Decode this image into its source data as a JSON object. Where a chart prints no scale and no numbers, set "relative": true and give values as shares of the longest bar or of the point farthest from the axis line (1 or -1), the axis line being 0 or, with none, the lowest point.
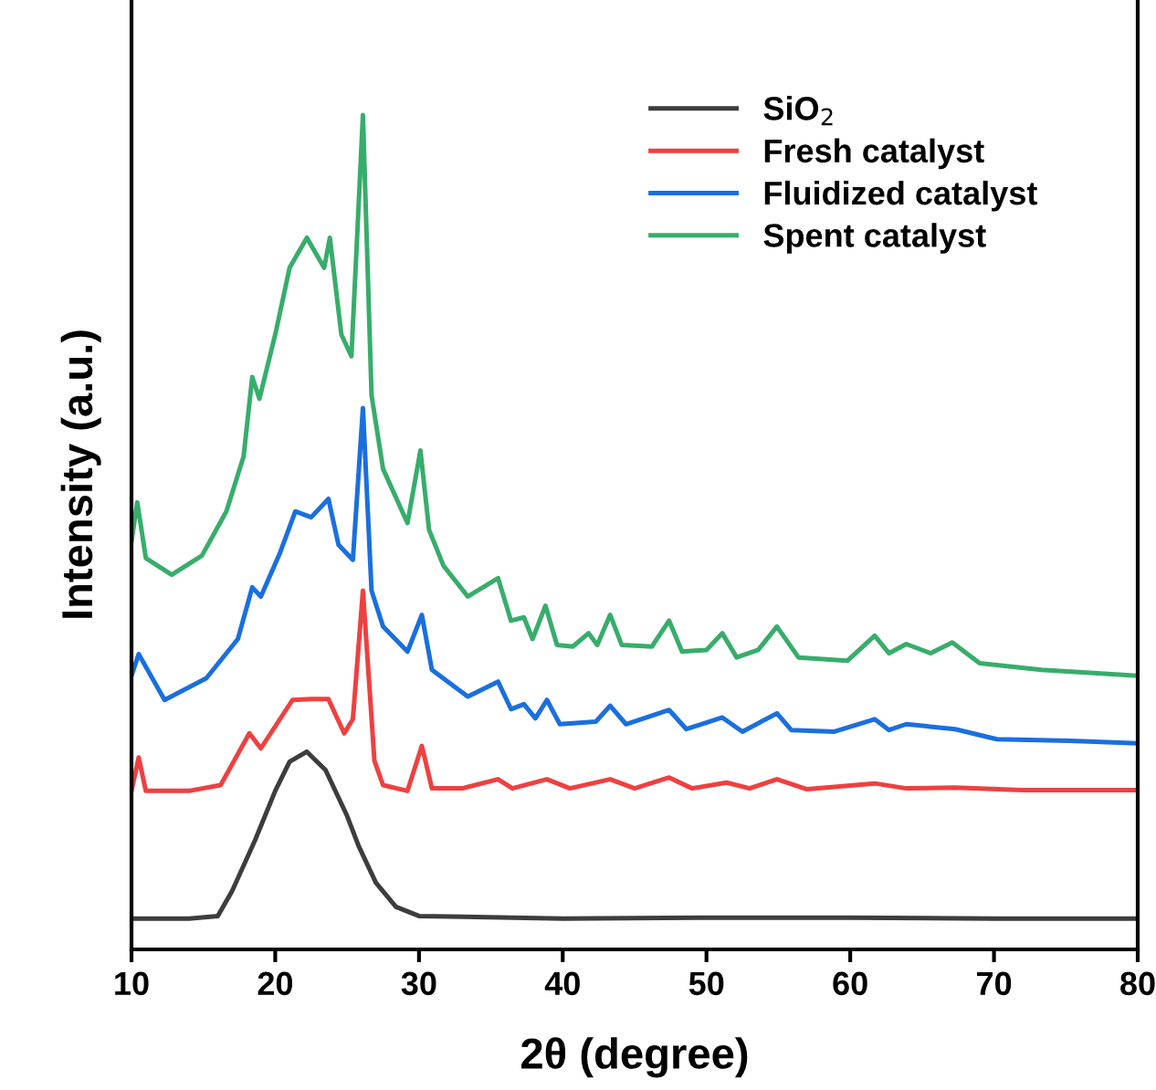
{
  "chart_data": {
    "type": "line",
    "xlabel": "2θ (degree)",
    "ylabel": "Intensity (a.u.)",
    "relative": true,
    "xlim": [
      10,
      80
    ],
    "xticks": [
      10,
      20,
      30,
      40,
      50,
      60,
      70,
      80
    ],
    "legend": "top right",
    "grid": false,
    "marker": "none",
    "line_style": "solid",
    "series": [
      {
        "name": "SiO$_{2}$",
        "color": "#3d3d3d",
        "x": [
          10,
          14,
          16,
          17,
          18.6,
          20,
          21,
          22.2,
          23.5,
          25,
          25.8,
          27,
          28.4,
          30,
          40,
          50,
          60,
          70,
          80
        ],
        "values": [
          0.037,
          0.037,
          0.04,
          0.07,
          0.131,
          0.19,
          0.225,
          0.237,
          0.215,
          0.16,
          0.124,
          0.08,
          0.051,
          0.04,
          0.037,
          0.038,
          0.038,
          0.037,
          0.037
        ]
      },
      {
        "name": "Fresh catalyst",
        "color": "#ef4040",
        "x": [
          10,
          10.5,
          11,
          14,
          16.2,
          18.2,
          19,
          21.2,
          22.5,
          23.7,
          24.8,
          25.4,
          26.1,
          26.9,
          27.5,
          29.2,
          30.2,
          30.9,
          33,
          35.5,
          36.5,
          38.9,
          40.5,
          43.3,
          45,
          47.4,
          49,
          51.4,
          53,
          54.9,
          57,
          61.7,
          63.9,
          67.3,
          72,
          80
        ],
        "values": [
          0.19,
          0.23,
          0.19,
          0.19,
          0.197,
          0.259,
          0.241,
          0.299,
          0.3,
          0.3,
          0.259,
          0.276,
          0.43,
          0.226,
          0.197,
          0.19,
          0.244,
          0.193,
          0.193,
          0.204,
          0.193,
          0.204,
          0.193,
          0.204,
          0.193,
          0.206,
          0.193,
          0.2,
          0.193,
          0.204,
          0.192,
          0.199,
          0.193,
          0.194,
          0.191,
          0.191
        ]
      },
      {
        "name": "Fluidized catalyst",
        "color": "#1a6fdf",
        "x": [
          10,
          10.5,
          12.3,
          15.2,
          17.4,
          18.4,
          19,
          20.3,
          21.4,
          22.5,
          23.7,
          24.4,
          25.4,
          26.1,
          26.7,
          27.5,
          29.2,
          30.2,
          30.9,
          33.4,
          35.5,
          36.4,
          37.3,
          38.1,
          38.9,
          39.8,
          42.3,
          43.3,
          44.4,
          47.4,
          48.6,
          51.1,
          52.5,
          54.9,
          55.9,
          58.9,
          61.7,
          62.7,
          63.9,
          67.3,
          70.2,
          75.3,
          80
        ],
        "values": [
          0.328,
          0.354,
          0.299,
          0.325,
          0.372,
          0.434,
          0.423,
          0.474,
          0.525,
          0.518,
          0.54,
          0.485,
          0.467,
          0.649,
          0.43,
          0.387,
          0.357,
          0.401,
          0.335,
          0.303,
          0.321,
          0.288,
          0.294,
          0.277,
          0.299,
          0.27,
          0.273,
          0.292,
          0.27,
          0.287,
          0.264,
          0.278,
          0.261,
          0.283,
          0.263,
          0.261,
          0.276,
          0.263,
          0.27,
          0.264,
          0.252,
          0.25,
          0.247
        ]
      },
      {
        "name": "Spent catalyst",
        "color": "#37ad6b",
        "x": [
          10,
          10.4,
          11,
          12.8,
          14.9,
          16.6,
          17.8,
          18.4,
          18.9,
          20,
          21,
          22.2,
          23.4,
          23.8,
          24.6,
          25.3,
          26.1,
          26.7,
          27.5,
          29.2,
          30.1,
          30.7,
          31.7,
          33.4,
          35.5,
          36.4,
          37.3,
          37.9,
          38.8,
          39.6,
          40.7,
          41.8,
          42.4,
          43.3,
          44.1,
          46.2,
          47.4,
          48.3,
          50,
          51.1,
          52.1,
          53.6,
          54.9,
          56.4,
          59.8,
          61.7,
          62.7,
          63.9,
          65.6,
          67.1,
          69,
          73.3,
          80
        ],
        "values": [
          0.489,
          0.536,
          0.469,
          0.449,
          0.472,
          0.525,
          0.591,
          0.686,
          0.66,
          0.737,
          0.817,
          0.853,
          0.817,
          0.853,
          0.737,
          0.711,
          1,
          0.664,
          0.576,
          0.511,
          0.598,
          0.503,
          0.46,
          0.423,
          0.445,
          0.394,
          0.398,
          0.372,
          0.412,
          0.365,
          0.363,
          0.379,
          0.365,
          0.401,
          0.365,
          0.363,
          0.394,
          0.357,
          0.359,
          0.379,
          0.35,
          0.359,
          0.387,
          0.35,
          0.346,
          0.376,
          0.355,
          0.366,
          0.355,
          0.368,
          0.343,
          0.335,
          0.328
        ]
      }
    ]
  }
}
